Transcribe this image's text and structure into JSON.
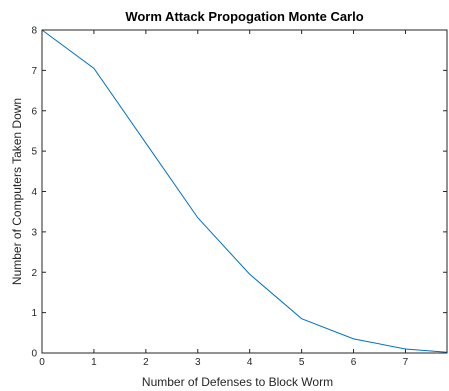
{
  "chart_data": {
    "type": "line",
    "title": "Worm Attack Propogation Monte Carlo",
    "xlabel": "Number of Defenses to Block Worm",
    "ylabel": "Number of Computers Taken Down",
    "xlim": [
      0,
      7.8
    ],
    "ylim": [
      0,
      8
    ],
    "xticks": [
      0,
      1,
      2,
      3,
      4,
      5,
      6,
      7
    ],
    "yticks": [
      0,
      1,
      2,
      3,
      4,
      5,
      6,
      7,
      8
    ],
    "grid": false,
    "legend": "none",
    "series": [
      {
        "color": "#0072bd",
        "x": [
          0,
          1,
          2,
          3,
          4,
          5,
          6,
          7,
          7.8
        ],
        "y": [
          8,
          7.05,
          5.2,
          3.35,
          1.95,
          0.85,
          0.35,
          0.1,
          0.02
        ]
      }
    ]
  }
}
